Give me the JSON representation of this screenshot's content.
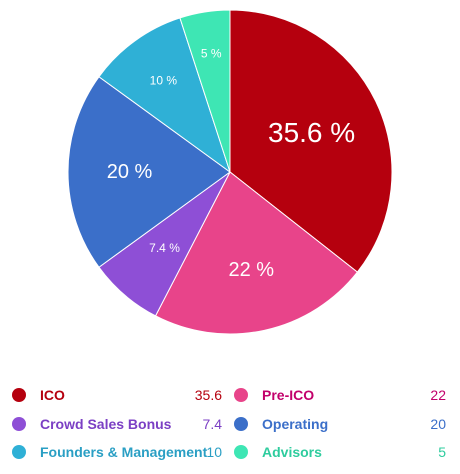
{
  "chart_data": {
    "type": "pie",
    "slices": [
      {
        "name": "ICO",
        "value": 35.6,
        "label": "35.6 %",
        "color": "#b5000e"
      },
      {
        "name": "Pre-ICO",
        "value": 22,
        "label": "22 %",
        "color": "#e8448a"
      },
      {
        "name": "Crowd Sales Bonus",
        "value": 7.4,
        "label": "7.4 %",
        "color": "#8e4fd6"
      },
      {
        "name": "Operating",
        "value": 20,
        "label": "20 %",
        "color": "#3b6fc9"
      },
      {
        "name": "Founders & Management",
        "value": 10,
        "label": "10 %",
        "color": "#2fb0d6"
      },
      {
        "name": "Advisors",
        "value": 5,
        "label": "5 %",
        "color": "#3ee6b4"
      }
    ],
    "legend": [
      {
        "name": "ICO",
        "value": "35.6",
        "color": "#b5000e",
        "label_color": "#b5000e",
        "value_color": "#b5000e"
      },
      {
        "name": "Pre-ICO",
        "value": "22",
        "color": "#e8448a",
        "label_color": "#c2006b",
        "value_color": "#c2006b"
      },
      {
        "name": "Crowd Sales Bonus",
        "value": "7.4",
        "color": "#8e4fd6",
        "label_color": "#7b3fc4",
        "value_color": "#7b3fc4"
      },
      {
        "name": "Operating",
        "value": "20",
        "color": "#3b6fc9",
        "label_color": "#3b6fc9",
        "value_color": "#3b6fc9"
      },
      {
        "name": "Founders & Management",
        "value": "10",
        "color": "#2fb0d6",
        "label_color": "#2a9fc4",
        "value_color": "#2a9fc4"
      },
      {
        "name": "Advisors",
        "value": "5",
        "color": "#3ee6b4",
        "label_color": "#2ecc9e",
        "value_color": "#2ecc9e"
      }
    ],
    "legend_placement": "bottom"
  }
}
